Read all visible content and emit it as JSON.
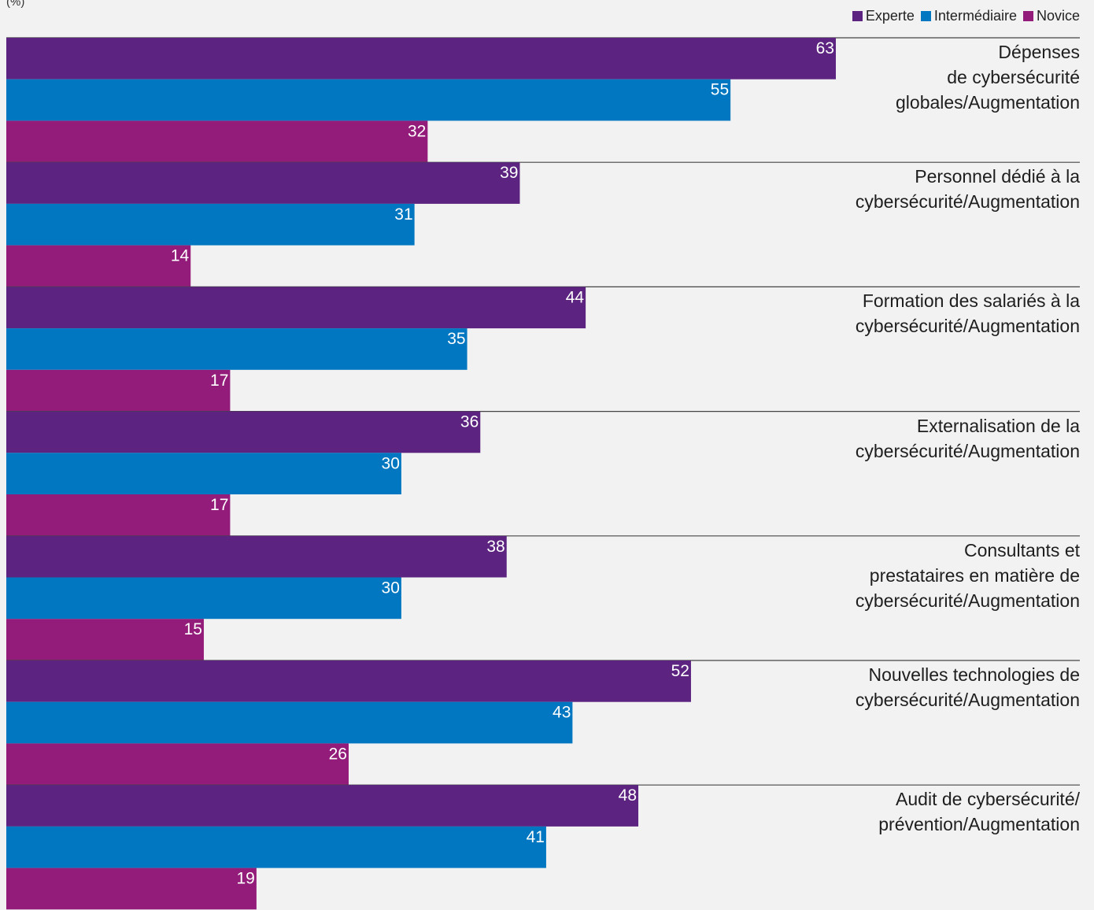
{
  "unit_label": "(%)",
  "legend": [
    {
      "label": "Experte",
      "color": "#5c2480"
    },
    {
      "label": "Intermédiaire",
      "color": "#0077c0"
    },
    {
      "label": "Novice",
      "color": "#931c7a"
    }
  ],
  "chart_data": {
    "type": "bar",
    "orientation": "horizontal",
    "unit": "(%)",
    "categories": [
      "Dépenses\nde cybersécurité\nglobales/Augmentation",
      "Personnel dédié à la\ncybersécurité/Augmentation",
      "Formation des salariés à la\ncybersécurité/Augmentation",
      "Externalisation de la\ncybersécurité/Augmentation",
      "Consultants et\nprestataires en matière de\ncybersécurité/Augmentation",
      "Nouvelles technologies de\ncybersécurité/Augmentation",
      "Audit de cybersécurité/\nprévention/Augmentation"
    ],
    "series": [
      {
        "name": "Experte",
        "color": "#5c2480",
        "values": [
          63,
          39,
          44,
          36,
          38,
          52,
          48
        ]
      },
      {
        "name": "Intermédiaire",
        "color": "#0077c0",
        "values": [
          55,
          31,
          35,
          30,
          30,
          43,
          41
        ]
      },
      {
        "name": "Novice",
        "color": "#931c7a",
        "values": [
          32,
          14,
          17,
          17,
          15,
          26,
          19
        ]
      }
    ],
    "xlim": [
      0,
      63
    ],
    "grid": false,
    "legend_position": "top-right",
    "data_labels": true
  }
}
